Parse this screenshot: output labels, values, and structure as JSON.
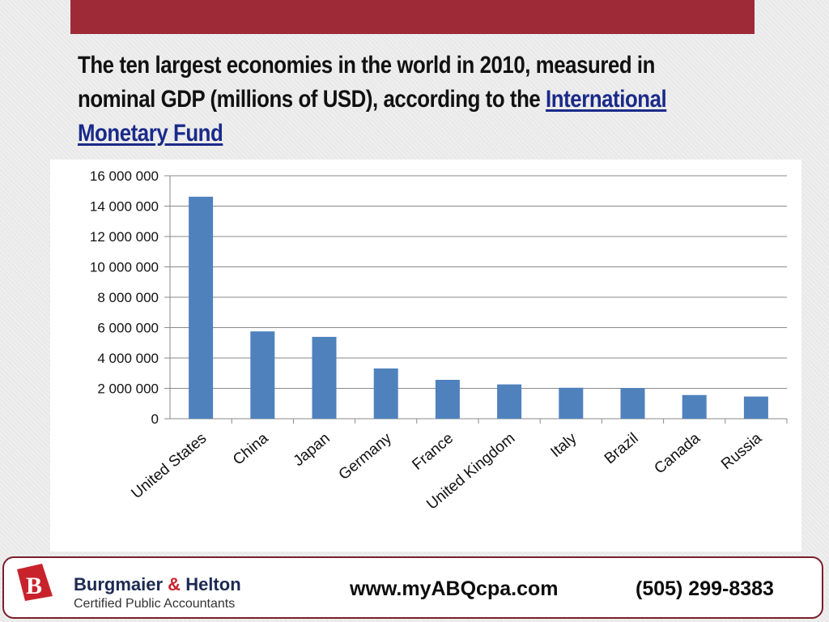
{
  "slide": {
    "title_text": "The ten largest economies in the world in 2010, measured in nominal GDP (millions of USD), according to the ",
    "title_link": "International Monetary Fund"
  },
  "chart_data": {
    "type": "bar",
    "title": "",
    "xlabel": "",
    "ylabel": "",
    "categories": [
      "United States",
      "China",
      "Japan",
      "Germany",
      "France",
      "United Kingdom",
      "Italy",
      "Brazil",
      "Canada",
      "Russia"
    ],
    "values": [
      14620000,
      5750000,
      5390000,
      3310000,
      2560000,
      2260000,
      2040000,
      2020000,
      1560000,
      1460000
    ],
    "ylim": [
      0,
      16000000
    ],
    "yticks": [
      0,
      2000000,
      4000000,
      6000000,
      8000000,
      10000000,
      12000000,
      14000000,
      16000000
    ],
    "ytick_labels": [
      "0",
      "2 000 000",
      "4 000 000",
      "6 000 000",
      "8 000 000",
      "10 000 000",
      "12 000 000",
      "14 000 000",
      "16 000 000"
    ],
    "grid": true,
    "bar_color": "#4f81bd",
    "grid_color": "#8a8a8a"
  },
  "footer": {
    "logo_letter": "B",
    "company_name_1": "Burgmaier",
    "company_amp": "&",
    "company_name_2": "Helton",
    "company_subtitle": "Certified Public Accountants",
    "website": "www.myABQcpa.com",
    "phone": "(505) 299-8383",
    "brand_color": "#c8232c",
    "accent_color": "#9e2a38"
  }
}
